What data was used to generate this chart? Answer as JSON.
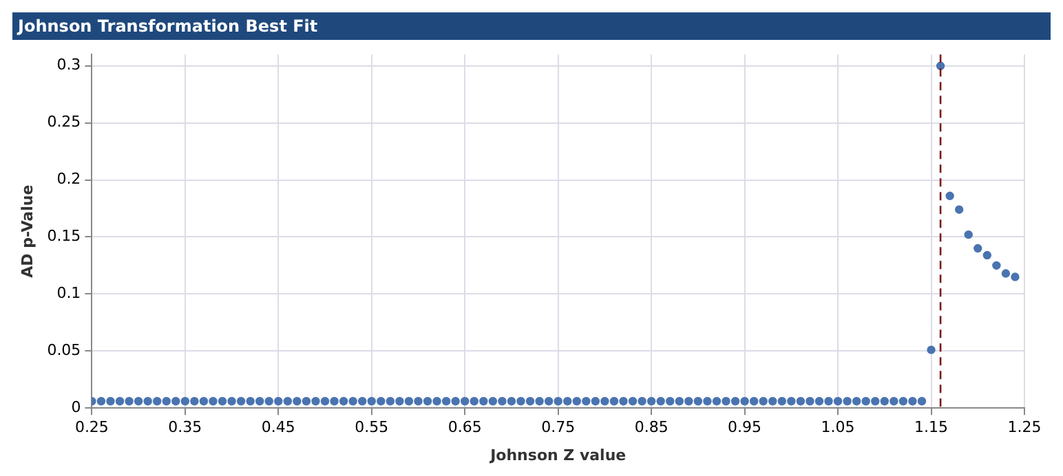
{
  "chart_data": {
    "type": "scatter",
    "title": "Johnson Transformation Best Fit",
    "xlabel": "Johnson Z value",
    "ylabel": "AD p-Value",
    "x": [
      0.25,
      0.26,
      0.27,
      0.28,
      0.29,
      0.3,
      0.31,
      0.32,
      0.33,
      0.34,
      0.35,
      0.36,
      0.37,
      0.38,
      0.39,
      0.4,
      0.41,
      0.42,
      0.43,
      0.44,
      0.45,
      0.46,
      0.47,
      0.48,
      0.49,
      0.5,
      0.51,
      0.52,
      0.53,
      0.54,
      0.55,
      0.56,
      0.57,
      0.58,
      0.59,
      0.6,
      0.61,
      0.62,
      0.63,
      0.64,
      0.65,
      0.66,
      0.67,
      0.68,
      0.69,
      0.7,
      0.71,
      0.72,
      0.73,
      0.74,
      0.75,
      0.76,
      0.77,
      0.78,
      0.79,
      0.8,
      0.81,
      0.82,
      0.83,
      0.84,
      0.85,
      0.86,
      0.87,
      0.88,
      0.89,
      0.9,
      0.91,
      0.92,
      0.93,
      0.94,
      0.95,
      0.96,
      0.97,
      0.98,
      0.99,
      1.0,
      1.01,
      1.02,
      1.03,
      1.04,
      1.05,
      1.06,
      1.07,
      1.08,
      1.09,
      1.1,
      1.11,
      1.12,
      1.13,
      1.14,
      1.15,
      1.16,
      1.17,
      1.18,
      1.19,
      1.2,
      1.21,
      1.22,
      1.23,
      1.24
    ],
    "series": [
      {
        "color": "#4a74b0",
        "values": [
          0.006,
          0.006,
          0.006,
          0.006,
          0.006,
          0.006,
          0.006,
          0.006,
          0.006,
          0.006,
          0.006,
          0.006,
          0.006,
          0.006,
          0.006,
          0.006,
          0.006,
          0.006,
          0.006,
          0.006,
          0.006,
          0.006,
          0.006,
          0.006,
          0.006,
          0.006,
          0.006,
          0.006,
          0.006,
          0.006,
          0.006,
          0.006,
          0.006,
          0.006,
          0.006,
          0.006,
          0.006,
          0.006,
          0.006,
          0.006,
          0.006,
          0.006,
          0.006,
          0.006,
          0.006,
          0.006,
          0.006,
          0.006,
          0.006,
          0.006,
          0.006,
          0.006,
          0.006,
          0.006,
          0.006,
          0.006,
          0.006,
          0.006,
          0.006,
          0.006,
          0.006,
          0.006,
          0.006,
          0.006,
          0.006,
          0.006,
          0.006,
          0.006,
          0.006,
          0.006,
          0.006,
          0.006,
          0.006,
          0.006,
          0.006,
          0.006,
          0.006,
          0.006,
          0.006,
          0.006,
          0.006,
          0.006,
          0.006,
          0.006,
          0.006,
          0.006,
          0.006,
          0.006,
          0.006,
          0.006,
          0.051,
          0.3,
          0.186,
          0.174,
          0.152,
          0.14,
          0.134,
          0.125,
          0.118,
          0.115
        ]
      }
    ],
    "xlim": [
      0.25,
      1.25
    ],
    "xticks": [
      0.25,
      0.35,
      0.45,
      0.55,
      0.65,
      0.75,
      0.85,
      0.95,
      1.05,
      1.15,
      1.25
    ],
    "ylim": [
      0,
      0.31
    ],
    "yticks": [
      0,
      0.05,
      0.1,
      0.15,
      0.2,
      0.25,
      0.3
    ],
    "ref_lines": [
      {
        "axis": "x",
        "value": 1.16,
        "color": "#7a1a1a",
        "line_style": "dashed"
      }
    ],
    "grid": true,
    "legend": false,
    "marker": "circle"
  }
}
